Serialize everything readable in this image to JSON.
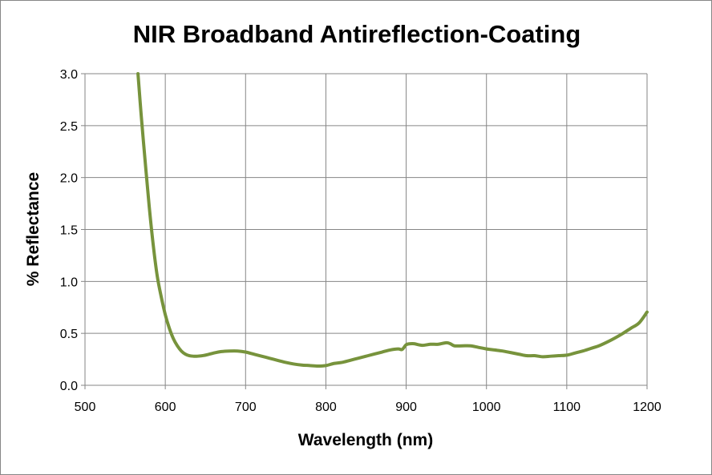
{
  "chart_data": {
    "type": "line",
    "title": "NIR Broadband Antireflection-Coating",
    "xlabel": "Wavelength (nm)",
    "ylabel": "% Reflectance",
    "xlim": [
      500,
      1200
    ],
    "ylim": [
      0,
      3.0
    ],
    "x_ticks": [
      500,
      600,
      700,
      800,
      900,
      1000,
      1100,
      1200
    ],
    "x_tick_labels": [
      "500",
      "600",
      "700",
      "800",
      "900",
      "1000",
      "1100",
      "1200"
    ],
    "y_ticks": [
      0,
      0.5,
      1.0,
      1.5,
      2.0,
      2.5,
      3.0
    ],
    "y_tick_labels": [
      "0.0",
      "0.5",
      "1.0",
      "1.5",
      "2.0",
      "2.5",
      "3.0"
    ],
    "grid": true,
    "legend": "none",
    "series": [
      {
        "color": "#77933C",
        "points": [
          [
            566,
            3.0
          ],
          [
            570,
            2.6
          ],
          [
            575,
            2.15
          ],
          [
            580,
            1.72
          ],
          [
            585,
            1.35
          ],
          [
            590,
            1.05
          ],
          [
            595,
            0.85
          ],
          [
            600,
            0.68
          ],
          [
            605,
            0.55
          ],
          [
            610,
            0.45
          ],
          [
            615,
            0.38
          ],
          [
            620,
            0.33
          ],
          [
            625,
            0.3
          ],
          [
            630,
            0.285
          ],
          [
            635,
            0.28
          ],
          [
            640,
            0.28
          ],
          [
            650,
            0.29
          ],
          [
            660,
            0.31
          ],
          [
            670,
            0.325
          ],
          [
            680,
            0.33
          ],
          [
            690,
            0.33
          ],
          [
            700,
            0.32
          ],
          [
            710,
            0.3
          ],
          [
            720,
            0.28
          ],
          [
            730,
            0.26
          ],
          [
            740,
            0.24
          ],
          [
            750,
            0.22
          ],
          [
            760,
            0.205
          ],
          [
            770,
            0.195
          ],
          [
            780,
            0.19
          ],
          [
            790,
            0.185
          ],
          [
            800,
            0.19
          ],
          [
            810,
            0.21
          ],
          [
            820,
            0.22
          ],
          [
            830,
            0.24
          ],
          [
            840,
            0.26
          ],
          [
            850,
            0.28
          ],
          [
            860,
            0.3
          ],
          [
            870,
            0.32
          ],
          [
            880,
            0.34
          ],
          [
            890,
            0.35
          ],
          [
            895,
            0.345
          ],
          [
            900,
            0.39
          ],
          [
            905,
            0.4
          ],
          [
            910,
            0.4
          ],
          [
            920,
            0.385
          ],
          [
            930,
            0.395
          ],
          [
            940,
            0.395
          ],
          [
            950,
            0.41
          ],
          [
            955,
            0.4
          ],
          [
            960,
            0.38
          ],
          [
            970,
            0.38
          ],
          [
            980,
            0.38
          ],
          [
            990,
            0.365
          ],
          [
            1000,
            0.35
          ],
          [
            1010,
            0.34
          ],
          [
            1020,
            0.33
          ],
          [
            1030,
            0.315
          ],
          [
            1040,
            0.3
          ],
          [
            1050,
            0.285
          ],
          [
            1060,
            0.285
          ],
          [
            1070,
            0.275
          ],
          [
            1080,
            0.28
          ],
          [
            1090,
            0.285
          ],
          [
            1100,
            0.29
          ],
          [
            1110,
            0.31
          ],
          [
            1120,
            0.33
          ],
          [
            1130,
            0.355
          ],
          [
            1140,
            0.38
          ],
          [
            1150,
            0.415
          ],
          [
            1160,
            0.455
          ],
          [
            1170,
            0.5
          ],
          [
            1180,
            0.55
          ],
          [
            1190,
            0.6
          ],
          [
            1200,
            0.705
          ]
        ]
      }
    ]
  }
}
